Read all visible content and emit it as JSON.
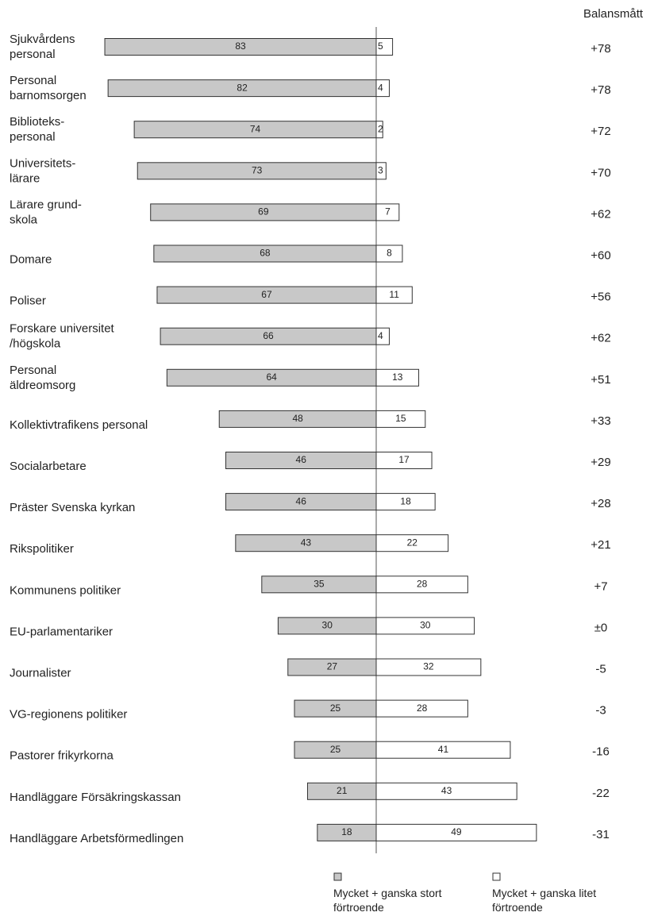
{
  "chart_data": {
    "type": "diverging_bar",
    "categories": [
      [
        "Sjukvårdens",
        "personal"
      ],
      [
        "Personal",
        "barnomsorgen"
      ],
      [
        "Biblioteks-",
        "personal"
      ],
      [
        "Universitets-",
        "lärare"
      ],
      [
        "Lärare grund-",
        "skola"
      ],
      [
        "Domare"
      ],
      [
        "Poliser"
      ],
      [
        "Forskare universitet",
        "/högskola"
      ],
      [
        "Personal",
        "äldreomsorg"
      ],
      [
        "Kollektivtrafikens personal"
      ],
      [
        "Socialarbetare"
      ],
      [
        "Präster Svenska kyrkan"
      ],
      [
        "Rikspolitiker"
      ],
      [
        "Kommunens politiker"
      ],
      [
        "EU-parlamentariker"
      ],
      [
        "Journalister"
      ],
      [
        "VG-regionens politiker"
      ],
      [
        "Pastorer frikyrkorna"
      ],
      [
        "Handläggare Försäkringskassan"
      ],
      [
        "Handläggare Arbetsförmedlingen"
      ]
    ],
    "series": [
      {
        "name": "Mycket + ganska stort förtroende",
        "color": "#c8c8c8",
        "values": [
          83,
          82,
          74,
          73,
          69,
          68,
          67,
          66,
          64,
          48,
          46,
          46,
          43,
          35,
          30,
          27,
          25,
          25,
          21,
          18
        ]
      },
      {
        "name": "Mycket + ganska litet förtroende",
        "color": "#ffffff",
        "values": [
          5,
          4,
          2,
          3,
          7,
          8,
          11,
          4,
          13,
          15,
          17,
          18,
          22,
          28,
          30,
          32,
          28,
          41,
          43,
          49
        ]
      }
    ],
    "balance": {
      "title": "Balansmått",
      "values": [
        78,
        78,
        72,
        70,
        62,
        60,
        56,
        62,
        51,
        33,
        29,
        28,
        21,
        7,
        0,
        -5,
        -3,
        -16,
        -22,
        -31
      ],
      "value_labels": [
        "+78",
        "+78",
        "+72",
        "+70",
        "+62",
        "+60",
        "+56",
        "+62",
        "+51",
        "+33",
        "+29",
        "+28",
        "+21",
        "+7",
        "±0",
        "-5",
        "-3",
        "-16",
        "-22",
        "-31"
      ]
    }
  }
}
